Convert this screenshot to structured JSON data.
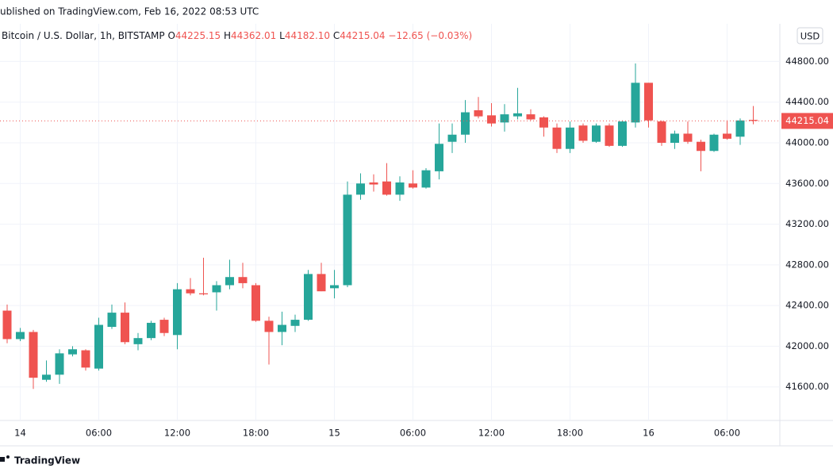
{
  "published": "ublished on TradingView.com, Feb 16, 2022 08:53 UTC",
  "branding": "TradingView",
  "chart_data": {
    "type": "candlestick",
    "title": "Bitcoin / U.S. Dollar, 1h, BITSTAMP",
    "currency": "USD",
    "ohlc_letters": [
      "O",
      "H",
      "L",
      "C"
    ],
    "last_labels": [
      "44225.15",
      "44362.01",
      "44182.10",
      "44215.04"
    ],
    "change": "−12.65 (−0.03%)",
    "up_color": "#26a69a",
    "down_color": "#ef5350",
    "grid": true,
    "categories": [
      null,
      "14",
      null,
      null,
      null,
      null,
      null,
      "06:00",
      null,
      null,
      null,
      null,
      null,
      "12:00",
      null,
      null,
      null,
      null,
      null,
      "18:00",
      null,
      null,
      null,
      null,
      null,
      "15",
      null,
      null,
      null,
      null,
      null,
      "06:00",
      null,
      null,
      null,
      null,
      null,
      "12:00",
      null,
      null,
      null,
      null,
      null,
      "18:00",
      null,
      null,
      null,
      null,
      null,
      "16",
      null,
      null,
      null,
      null,
      null,
      "06:00",
      null,
      null
    ],
    "open": [
      42350,
      42070,
      42140,
      41670,
      41720,
      41920,
      41960,
      41780,
      42190,
      42330,
      42020,
      42080,
      42260,
      42110,
      42560,
      42520,
      42530,
      42600,
      42680,
      42600,
      42250,
      42140,
      42200,
      42260,
      42710,
      42570,
      42600,
      43490,
      43610,
      43620,
      43490,
      43600,
      43560,
      43720,
      44010,
      44080,
      44320,
      44270,
      44200,
      44260,
      44280,
      44250,
      44150,
      43940,
      44170,
      44010,
      44170,
      43970,
      44200,
      44590,
      44210,
      44000,
      44090,
      44010,
      43920,
      44090,
      44060,
      44225.15
    ],
    "high": [
      42410,
      42180,
      42160,
      41860,
      41970,
      42000,
      41970,
      42280,
      42410,
      42430,
      42130,
      42250,
      42280,
      42620,
      42670,
      42870,
      42640,
      42850,
      42820,
      42620,
      42290,
      42340,
      42310,
      42750,
      42820,
      42750,
      43620,
      43700,
      43690,
      43800,
      43670,
      43730,
      43750,
      44190,
      44190,
      44420,
      44450,
      44390,
      44380,
      44540,
      44330,
      44260,
      44190,
      44210,
      44190,
      44190,
      44190,
      44220,
      44780,
      44590,
      44220,
      44120,
      44210,
      44030,
      44090,
      44220,
      44240,
      44362.01
    ],
    "low": [
      42030,
      42050,
      41580,
      41650,
      41630,
      41900,
      41760,
      41760,
      42170,
      42020,
      41960,
      42060,
      42100,
      41970,
      42500,
      42500,
      42350,
      42560,
      42570,
      42240,
      41820,
      42010,
      42140,
      42250,
      42540,
      42470,
      42580,
      43440,
      43520,
      43480,
      43430,
      43550,
      43550,
      43640,
      43900,
      44000,
      44240,
      44160,
      44110,
      44230,
      44220,
      44060,
      43900,
      43900,
      44000,
      44000,
      43960,
      43960,
      44150,
      44150,
      43970,
      43940,
      43990,
      43720,
      43910,
      44030,
      43980,
      44182.1
    ],
    "close": [
      42070,
      42140,
      41690,
      41720,
      41930,
      41970,
      41790,
      42210,
      42330,
      42040,
      42080,
      42230,
      42130,
      42560,
      42520,
      42510,
      42600,
      42680,
      42620,
      42250,
      42140,
      42210,
      42260,
      42710,
      42540,
      42600,
      43490,
      43600,
      43590,
      43490,
      43610,
      43560,
      43730,
      43990,
      44080,
      44300,
      44260,
      44190,
      44280,
      44290,
      44230,
      44150,
      43940,
      44150,
      44020,
      44170,
      43970,
      44210,
      44590,
      44220,
      44000,
      44090,
      44010,
      43920,
      44080,
      44040,
      44220,
      44215.04
    ],
    "ylim": [
      41270,
      45170
    ],
    "yticks": [
      {
        "value": 41600,
        "label": "41600.00"
      },
      {
        "value": 42000,
        "label": "42000.00"
      },
      {
        "value": 42400,
        "label": "42400.00"
      },
      {
        "value": 42800,
        "label": "42800.00"
      },
      {
        "value": 43200,
        "label": "43200.00"
      },
      {
        "value": 43600,
        "label": "43600.00"
      },
      {
        "value": 44000,
        "label": "44000.00"
      },
      {
        "value": 44400,
        "label": "44400.00"
      },
      {
        "value": 44800,
        "label": "44800.00"
      }
    ]
  }
}
